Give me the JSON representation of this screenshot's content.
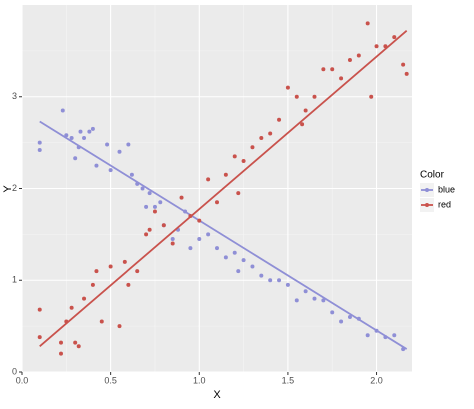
{
  "chart_data": {
    "type": "scatter",
    "x_label": "X",
    "y_label": "Y",
    "xlim": [
      0,
      2.2
    ],
    "ylim": [
      0,
      4.0
    ],
    "xticks": [
      {
        "value": 0,
        "label": "0.0"
      },
      0.5,
      {
        "value": 1,
        "label": "1.0"
      },
      1.5,
      {
        "value": 2,
        "label": "2.0"
      }
    ],
    "yticks": [
      0,
      1,
      2,
      3
    ],
    "grid": true,
    "legend_title": "Color",
    "legend_position": "right",
    "series": [
      {
        "name": "blue",
        "color": "#8f8fd6",
        "x": [
          0.1,
          0.1,
          0.23,
          0.25,
          0.28,
          0.3,
          0.32,
          0.33,
          0.35,
          0.38,
          0.4,
          0.42,
          0.48,
          0.5,
          0.55,
          0.6,
          0.62,
          0.65,
          0.68,
          0.7,
          0.72,
          0.75,
          0.78,
          0.8,
          0.85,
          0.88,
          0.92,
          0.95,
          1.0,
          1.05,
          1.1,
          1.15,
          1.2,
          1.22,
          1.25,
          1.3,
          1.35,
          1.4,
          1.45,
          1.5,
          1.55,
          1.6,
          1.65,
          1.7,
          1.75,
          1.8,
          1.85,
          1.9,
          1.95,
          2.0,
          2.05,
          2.1,
          2.15
        ],
        "values": [
          2.5,
          2.42,
          2.85,
          2.58,
          2.55,
          2.33,
          2.45,
          2.62,
          2.55,
          2.62,
          2.65,
          2.25,
          2.48,
          2.2,
          2.4,
          2.48,
          2.15,
          2.05,
          2.0,
          1.8,
          1.95,
          1.8,
          1.85,
          1.6,
          1.45,
          1.55,
          1.75,
          1.35,
          1.45,
          1.5,
          1.35,
          1.25,
          1.3,
          1.1,
          1.22,
          1.15,
          1.05,
          1.0,
          1.0,
          0.95,
          0.78,
          0.88,
          0.8,
          0.78,
          0.65,
          0.55,
          0.6,
          0.58,
          0.4,
          0.45,
          0.38,
          0.4,
          0.25
        ],
        "fit": {
          "x": [
            0.1,
            2.17
          ],
          "y": [
            2.73,
            0.25
          ]
        }
      },
      {
        "name": "red",
        "color": "#c9524c",
        "x": [
          0.1,
          0.1,
          0.22,
          0.22,
          0.25,
          0.28,
          0.3,
          0.32,
          0.35,
          0.4,
          0.42,
          0.45,
          0.5,
          0.55,
          0.58,
          0.6,
          0.65,
          0.7,
          0.72,
          0.75,
          0.8,
          0.85,
          0.9,
          0.95,
          1.0,
          1.05,
          1.1,
          1.15,
          1.2,
          1.22,
          1.25,
          1.3,
          1.35,
          1.4,
          1.45,
          1.5,
          1.55,
          1.58,
          1.6,
          1.65,
          1.7,
          1.75,
          1.8,
          1.85,
          1.9,
          1.95,
          1.97,
          2.0,
          2.05,
          2.1,
          2.15,
          2.17
        ],
        "values": [
          0.68,
          0.38,
          0.32,
          0.2,
          0.55,
          0.7,
          0.32,
          0.28,
          0.8,
          0.95,
          1.1,
          0.55,
          1.15,
          0.5,
          1.2,
          0.95,
          1.1,
          1.5,
          1.55,
          1.75,
          1.6,
          1.4,
          1.9,
          1.7,
          1.65,
          2.1,
          1.85,
          2.15,
          2.35,
          1.95,
          2.3,
          2.45,
          2.55,
          2.6,
          2.75,
          3.1,
          3.0,
          2.7,
          2.85,
          3.0,
          3.3,
          3.3,
          3.2,
          3.4,
          3.45,
          3.8,
          3.0,
          3.55,
          3.55,
          3.65,
          3.35,
          3.25
        ],
        "fit": {
          "x": [
            0.1,
            2.17
          ],
          "y": [
            0.28,
            3.72
          ]
        }
      }
    ]
  }
}
